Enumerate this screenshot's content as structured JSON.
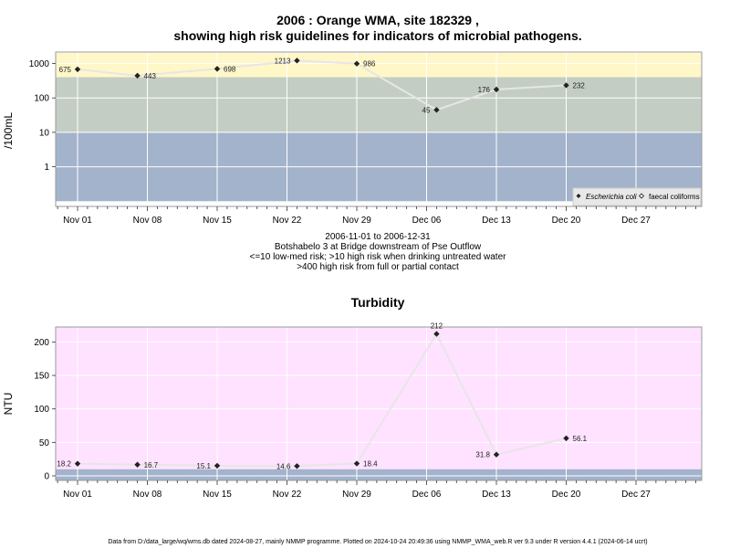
{
  "chart_data": [
    {
      "type": "line",
      "title_line1": "2006 : Orange WMA, site 182329 ,",
      "title_line2": "showing high risk guidelines for indicators of microbial pathogens.",
      "ylabel": "/100mL",
      "yscale": "log",
      "ylim": [
        0.1,
        2000
      ],
      "yticks": [
        "1000",
        "100",
        "10",
        "1"
      ],
      "ytick_values": [
        1000,
        100,
        10,
        1
      ],
      "x_dates": [
        "Nov 01",
        "Nov 08",
        "Nov 15",
        "Nov 22",
        "Nov 29",
        "Dec 06",
        "Dec 13",
        "Dec 20",
        "Dec 27"
      ],
      "bands": [
        {
          "from": 0.1,
          "to": 10,
          "color": "#a3b3cc"
        },
        {
          "from": 10,
          "to": 400,
          "color": "#c4cdc4"
        },
        {
          "from": 400,
          "to": 2000,
          "color": "#fff7c8"
        }
      ],
      "series": [
        {
          "name": "Escherichia coli",
          "marker": "filled-diamond",
          "x": [
            "2006-11-01",
            "2006-11-07",
            "2006-11-15",
            "2006-11-23",
            "2006-11-29",
            "2006-12-07",
            "2006-12-13",
            "2006-12-20"
          ],
          "values": [
            675,
            443,
            698,
            1213,
            986,
            45,
            176,
            232
          ],
          "labels": [
            "675",
            "443",
            "698",
            "1213",
            "986",
            "45",
            "176",
            "232"
          ]
        }
      ],
      "legend": {
        "position": "bottom-right",
        "entries": [
          "Escherichia coli",
          "faecal coliforms"
        ]
      },
      "caption": [
        "2006-11-01 to 2006-12-31",
        "Botshabelo 3 at Bridge downstream of Pse Outflow",
        "<=10 low-med risk; >10 high risk when drinking untreated water",
        ">400 high risk from full or partial contact"
      ]
    },
    {
      "type": "line",
      "title": "Turbidity",
      "ylabel": "NTU",
      "ylim": [
        -7,
        222
      ],
      "yticks": [
        "0",
        "50",
        "100",
        "150",
        "200"
      ],
      "ytick_values": [
        0,
        50,
        100,
        150,
        200
      ],
      "x_dates": [
        "Nov 01",
        "Nov 08",
        "Nov 15",
        "Nov 22",
        "Nov 29",
        "Dec 06",
        "Dec 13",
        "Dec 20",
        "Dec 27"
      ],
      "bands": [
        {
          "from": -7,
          "to": 10,
          "color": "#a3b3cc"
        },
        {
          "from": 10,
          "to": 222,
          "color": "#ffe2ff"
        }
      ],
      "series": [
        {
          "name": "Turbidity",
          "marker": "filled-diamond",
          "x": [
            "2006-11-01",
            "2006-11-07",
            "2006-11-15",
            "2006-11-23",
            "2006-11-29",
            "2006-12-07",
            "2006-12-13",
            "2006-12-20"
          ],
          "values": [
            18.2,
            16.7,
            15.1,
            14.6,
            18.4,
            212,
            31.8,
            56.1
          ],
          "labels": [
            "18.2",
            "16.7",
            "15.1",
            "14.6",
            "18.4",
            "212",
            "31.8",
            "56.1"
          ]
        }
      ]
    }
  ],
  "footer": "Data from D:/data_large/wq/wms.db dated 2024-08-27, mainly NMMP programme. Plotted on 2024-10-24 20:49:36 using NMMP_WMA_web.R ver 9.3 under R version 4.4.1 (2024-06-14 ucrt)"
}
